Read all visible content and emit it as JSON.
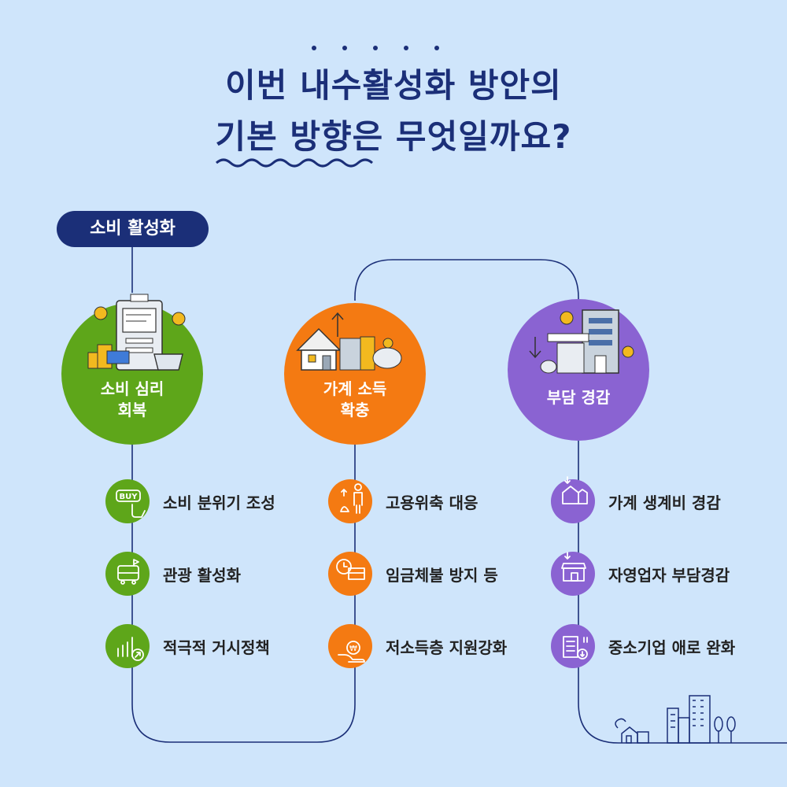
{
  "title": {
    "line1": "이번 내수활성화 방안의",
    "line2": "기본 방향은 무엇일까요?"
  },
  "badge": "소비 활성화",
  "colors": {
    "navy": "#1b2f78",
    "green": "#5ea61a",
    "orange": "#f47a12",
    "purple": "#8a63d2",
    "background": "#cfe5fb"
  },
  "groups": [
    {
      "label_line1": "소비 심리",
      "label_line2": "회복",
      "items": [
        {
          "label": "소비 분위기 조성",
          "icon": "buy-hand-icon"
        },
        {
          "label": "관광 활성화",
          "icon": "tour-bus-icon"
        },
        {
          "label": "적극적 거시정책",
          "icon": "growth-chart-icon"
        }
      ]
    },
    {
      "label_line1": "가계 소득",
      "label_line2": "확충",
      "items": [
        {
          "label": "고용위축 대응",
          "icon": "worker-icon"
        },
        {
          "label": "임금체불 방지 등",
          "icon": "wage-clock-icon"
        },
        {
          "label": "저소득층 지원강화",
          "icon": "coin-hand-icon"
        }
      ]
    },
    {
      "label_line1": "부담 경감",
      "label_line2": "",
      "items": [
        {
          "label": "가계 생계비 경감",
          "icon": "house-down-icon"
        },
        {
          "label": "자영업자 부담경감",
          "icon": "shop-down-icon"
        },
        {
          "label": "중소기업 애로 완화",
          "icon": "office-down-icon"
        }
      ]
    }
  ]
}
